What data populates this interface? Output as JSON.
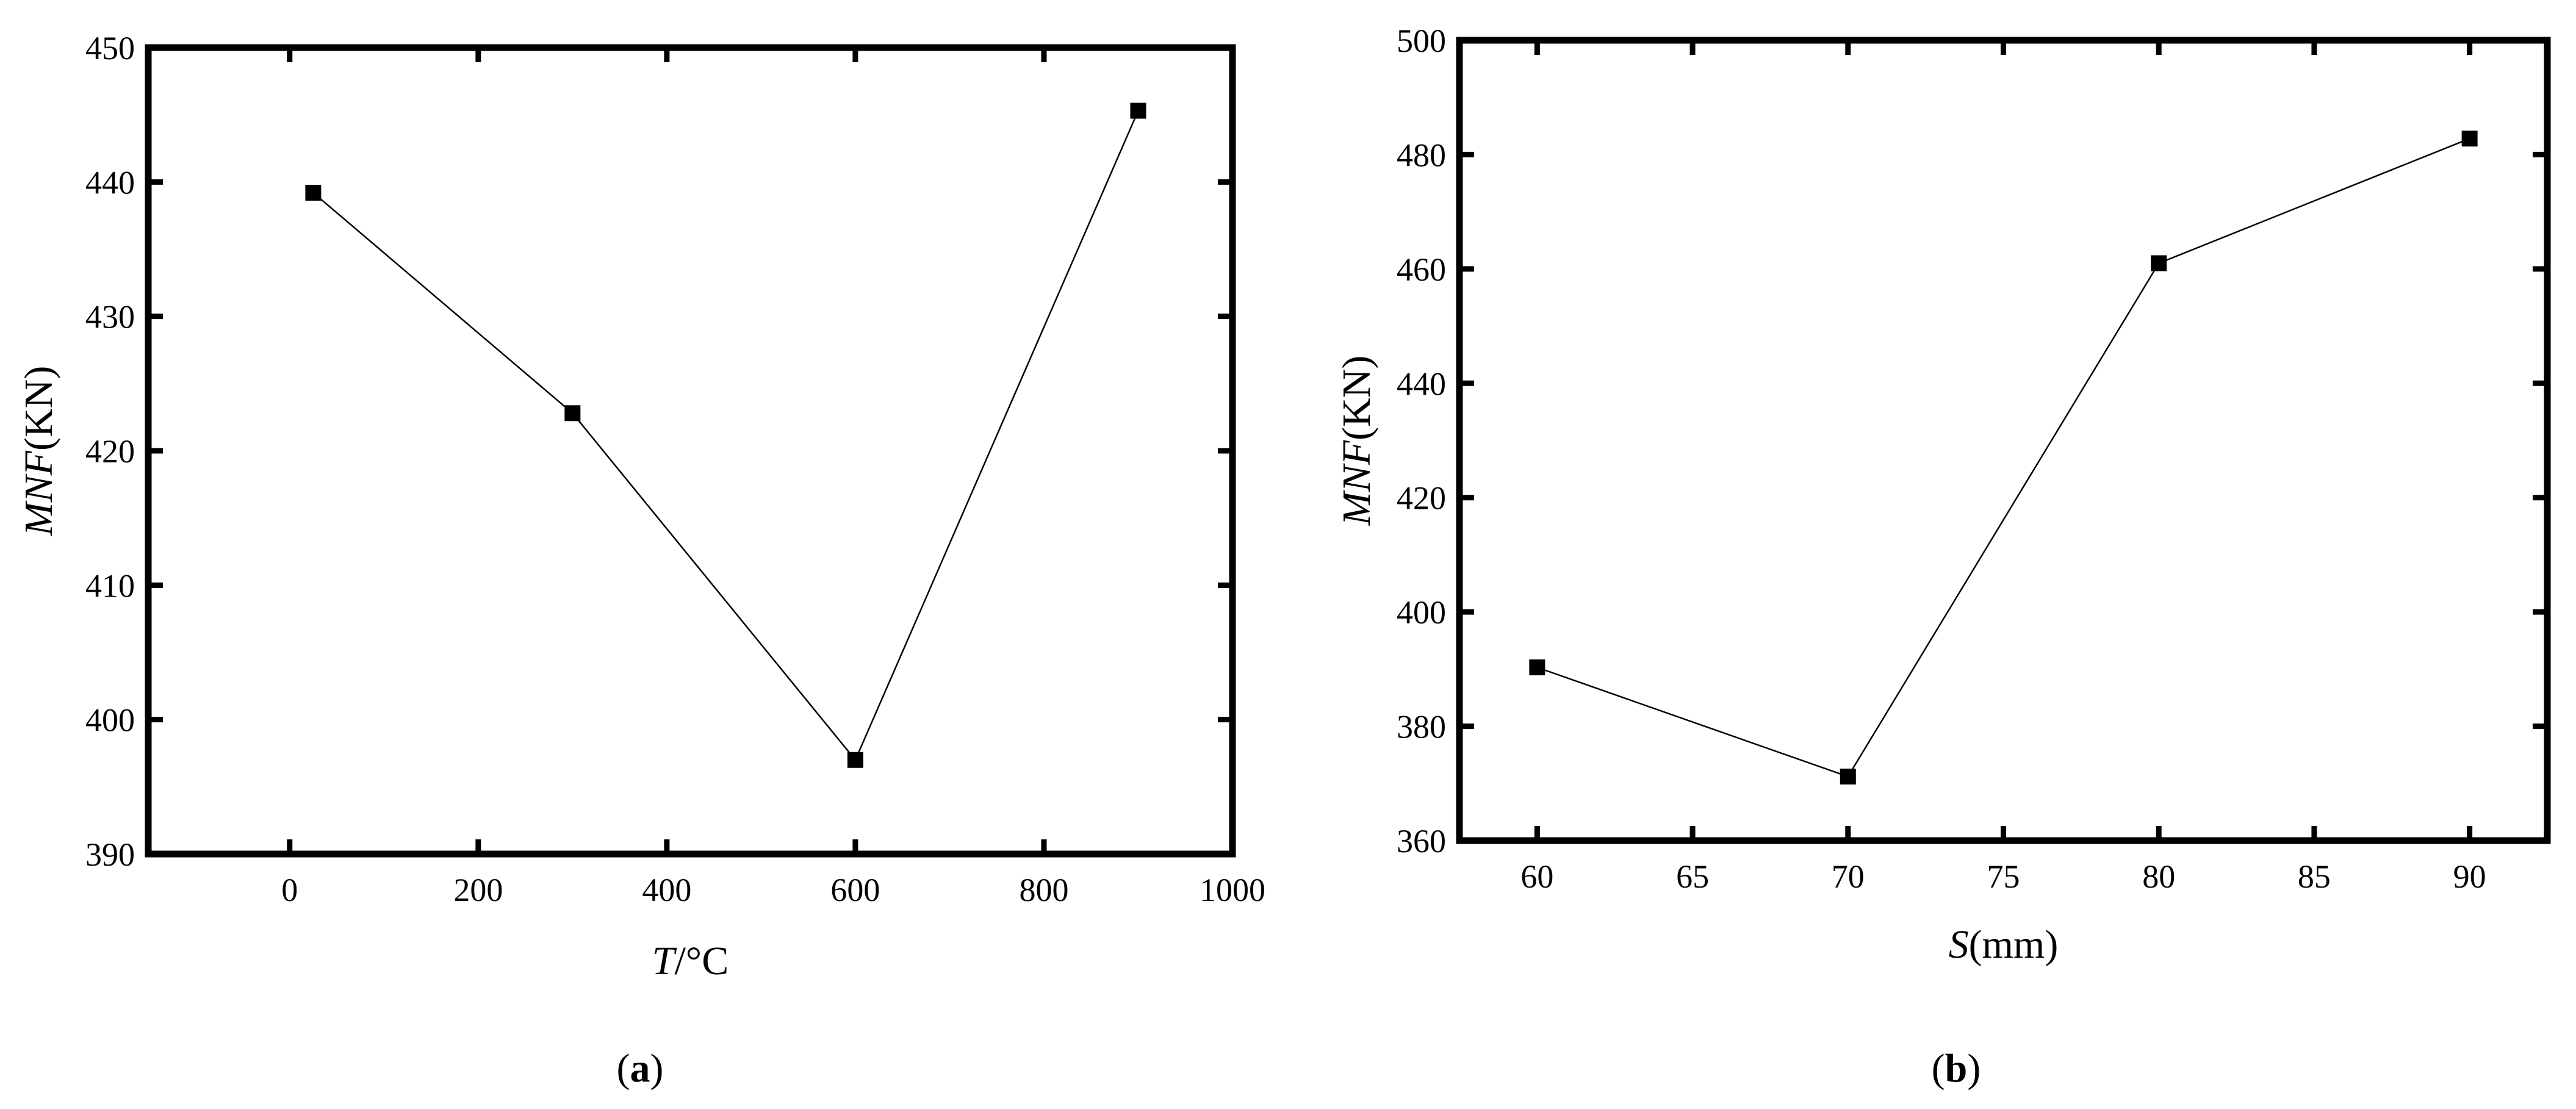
{
  "figure": {
    "panels": [
      {
        "label_open": "(",
        "label_letter": "a",
        "label_close": ")"
      },
      {
        "label_open": "(",
        "label_letter": "b",
        "label_close": ")"
      }
    ]
  },
  "chart_data": [
    {
      "type": "line",
      "title": "",
      "xlabel_var": "T",
      "xlabel_unit": "/°C",
      "ylabel_var": "MNF",
      "ylabel_unit": "(KN)",
      "xlim": [
        -150,
        1000
      ],
      "ylim": [
        390,
        450
      ],
      "xticks": [
        0,
        200,
        400,
        600,
        800,
        1000
      ],
      "yticks": [
        390,
        400,
        410,
        420,
        430,
        440,
        450
      ],
      "grid": false,
      "marker": "square",
      "series": [
        {
          "x": [
            25,
            300,
            600,
            900
          ],
          "y": [
            439.2,
            422.8,
            397.0,
            445.3
          ]
        }
      ]
    },
    {
      "type": "line",
      "title": "",
      "xlabel_var": "S",
      "xlabel_unit": "(mm)",
      "ylabel_var": "MNF",
      "ylabel_unit": "(KN)",
      "xlim": [
        57.5,
        92.5
      ],
      "ylim": [
        360,
        500
      ],
      "xticks": [
        60,
        65,
        70,
        75,
        80,
        85,
        90
      ],
      "yticks": [
        360,
        380,
        400,
        420,
        440,
        460,
        480,
        500
      ],
      "grid": false,
      "marker": "square",
      "series": [
        {
          "x": [
            60,
            70,
            80,
            90
          ],
          "y": [
            390.3,
            371.2,
            461.0,
            482.8
          ]
        }
      ]
    }
  ]
}
